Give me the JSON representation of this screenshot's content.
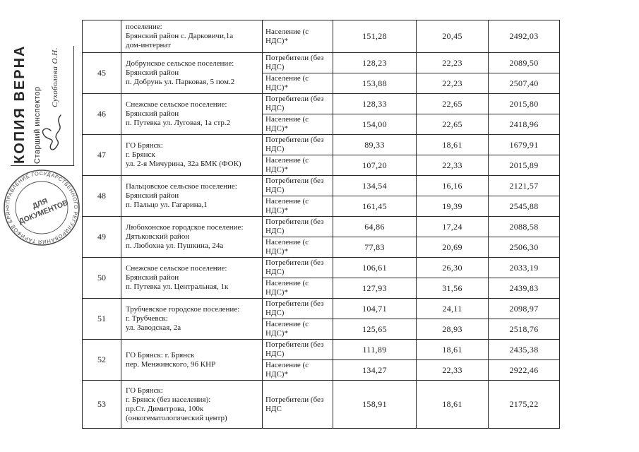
{
  "page": {
    "background": "#ffffff",
    "ink": "#1f1f1f",
    "stamp_ink": "#4f4f4f"
  },
  "stamp": {
    "copy_label": "КОПИЯ ВЕРНА",
    "inspector_title": "Старший инспектор",
    "inspector_name": "Сухоболова О.Н.",
    "round_center_line1": "ДЛЯ",
    "round_center_line2": "ДОКУМЕНТОВ",
    "round_ring_text": "УПРАВЛЕНИЕ ГОСУДАРСТВЕННОГО РЕГУЛИРОВАНИЯ ТАРИФОВ БРЯНСКОЙ ОБЛАСТИ •"
  },
  "table": {
    "rows": [
      {
        "num": "",
        "settlement": "поселение:\nБрянский район с. Дарковичи,1а\nдом-интернат",
        "subrows": [
          {
            "type": "Население (с НДС)*",
            "v1": "151,28",
            "v2": "20,45",
            "v3": "2492,03"
          }
        ]
      },
      {
        "num": "45",
        "settlement": "Добрунское сельское поселение:\nБрянский район\nп. Добрунь ул. Парковая, 5 пом.2",
        "subrows": [
          {
            "type": "Потребители (без НДС)",
            "v1": "128,23",
            "v2": "22,23",
            "v3": "2089,50"
          },
          {
            "type": "Население (с НДС)*",
            "v1": "153,88",
            "v2": "22,23",
            "v3": "2507,40"
          }
        ]
      },
      {
        "num": "46",
        "settlement": "Снежское сельское поселение:\nБрянский район\nп. Путевка ул. Луговая, 1а стр.2",
        "subrows": [
          {
            "type": "Потребители (без НДС)",
            "v1": "128,33",
            "v2": "22,65",
            "v3": "2015,80"
          },
          {
            "type": "Население (с НДС)*",
            "v1": "154,00",
            "v2": "22,65",
            "v3": "2418,96"
          }
        ]
      },
      {
        "num": "47",
        "settlement": "ГО Брянск:\nг. Брянск\nул. 2-я Мичурина, 32а БМК  (ФОК)",
        "subrows": [
          {
            "type": "Потребители (без НДС)",
            "v1": "89,33",
            "v2": "18,61",
            "v3": "1679,91"
          },
          {
            "type": "Население (с НДС)*",
            "v1": "107,20",
            "v2": "22,33",
            "v3": "2015,89"
          }
        ]
      },
      {
        "num": "48",
        "settlement": "Пальцовское сельское поселение:\nБрянский район\nп. Пальцо ул. Гагарина,1",
        "subrows": [
          {
            "type": "Потребители (без НДС)",
            "v1": "134,54",
            "v2": "16,16",
            "v3": "2121,57"
          },
          {
            "type": "Население (с НДС)*",
            "v1": "161,45",
            "v2": "19,39",
            "v3": "2545,88"
          }
        ]
      },
      {
        "num": "49",
        "settlement": "Любохонское городское поселение:\nДятьковский район\nп. Любохна ул. Пушкина, 24а",
        "subrows": [
          {
            "type": "Потребители (без НДС)",
            "v1": "64,86",
            "v2": "17,24",
            "v3": "2088,58"
          },
          {
            "type": "Население (с НДС)*",
            "v1": "77,83",
            "v2": "20,69",
            "v3": "2506,30"
          }
        ]
      },
      {
        "num": "50",
        "settlement": "Снежское сельское поселение:\nБрянский район\nп. Путевка ул. Центральная, 1к",
        "subrows": [
          {
            "type": "Потребители (без НДС)",
            "v1": "106,61",
            "v2": "26,30",
            "v3": "2033,19"
          },
          {
            "type": "Население (с НДС)*",
            "v1": "127,93",
            "v2": "31,56",
            "v3": "2439,83"
          }
        ]
      },
      {
        "num": "51",
        "settlement": "Трубчевское городское поселение:\nг. Трубчевск:\nул. Заводская, 2а",
        "subrows": [
          {
            "type": "Потребители (без НДС)",
            "v1": "104,71",
            "v2": "24,11",
            "v3": "2098,97"
          },
          {
            "type": "Население (с НДС)*",
            "v1": "125,65",
            "v2": "28,93",
            "v3": "2518,76"
          }
        ]
      },
      {
        "num": "52",
        "settlement": "ГО Брянск: г. Брянск\nпер. Менжинского, 9б КНР",
        "subrows": [
          {
            "type": "Потребители (без НДС)",
            "v1": "111,89",
            "v2": "18,61",
            "v3": "2435,38"
          },
          {
            "type": "Население (с НДС)*",
            "v1": "134,27",
            "v2": "22,33",
            "v3": "2922,46"
          }
        ]
      },
      {
        "num": "53",
        "settlement": "ГО Брянск:\nг. Брянск (без населения):\nпр.Ст. Димитрова, 100к\n(онкогематологический центр)",
        "subrows": [
          {
            "type": "Потребители (без НДС",
            "v1": "158,91",
            "v2": "18,61",
            "v3": "2175,22"
          }
        ]
      }
    ]
  }
}
